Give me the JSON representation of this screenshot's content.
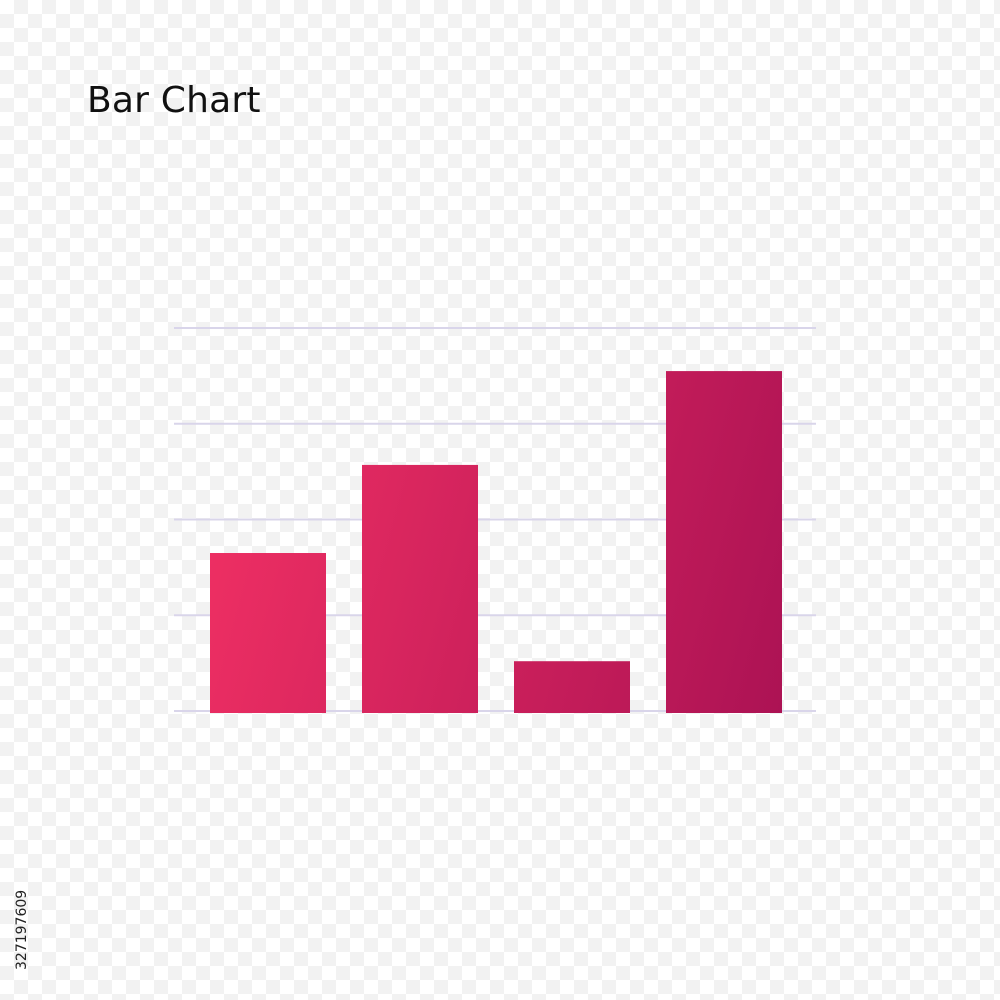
{
  "title": "Bar Chart",
  "stock_id": "327197609",
  "colors": {
    "bar_light": "#ee2f63",
    "bar_dark": "#ab1254",
    "gridline": "#d9d5ea"
  },
  "chart_data": {
    "type": "bar",
    "categories": [
      "",
      "",
      "",
      ""
    ],
    "values": [
      1.65,
      2.57,
      0.52,
      3.55
    ],
    "ylim": [
      0,
      4
    ],
    "grid": true,
    "gridlines": [
      0,
      1,
      2,
      3,
      4
    ],
    "legend": "none",
    "xlabel": "",
    "ylabel": ""
  }
}
